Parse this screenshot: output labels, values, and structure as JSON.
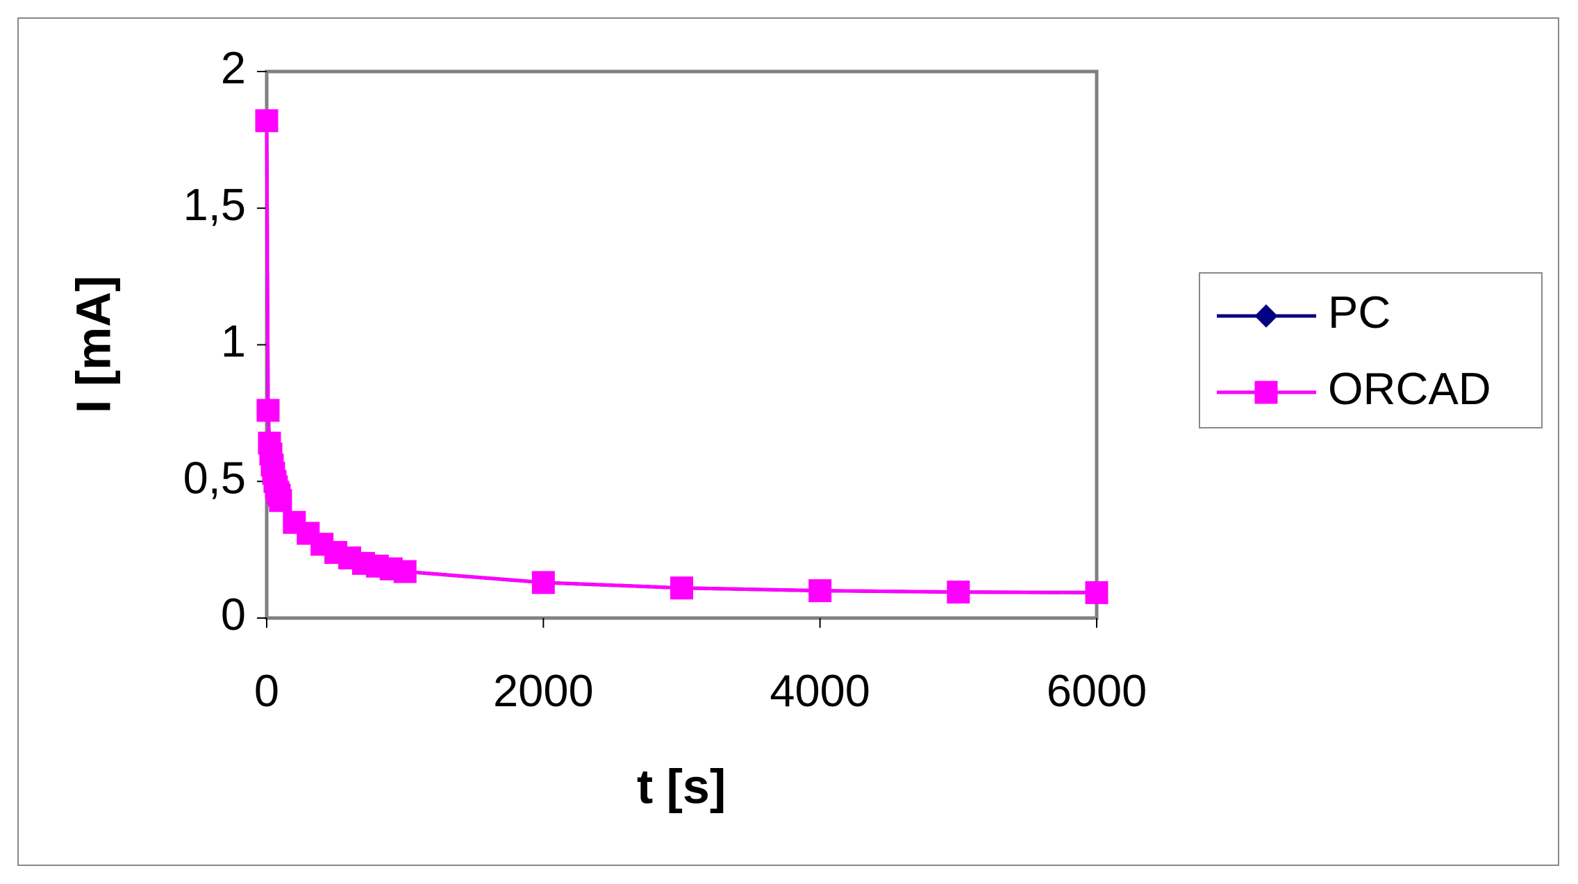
{
  "chart_data": {
    "type": "line",
    "x_label": "t [s]",
    "y_label": "I [mA]",
    "x": [
      0,
      10,
      20,
      30,
      40,
      50,
      60,
      70,
      80,
      90,
      100,
      200,
      300,
      400,
      500,
      600,
      700,
      800,
      900,
      1000,
      2000,
      3000,
      4000,
      5000,
      6000
    ],
    "series": [
      {
        "name": "PC",
        "color": "#000080",
        "marker": "diamond",
        "values": [
          1.82,
          0.76,
          0.64,
          0.6,
          0.56,
          0.53,
          0.5,
          0.48,
          0.46,
          0.45,
          0.43,
          0.35,
          0.31,
          0.27,
          0.24,
          0.22,
          0.2,
          0.19,
          0.18,
          0.17,
          0.13,
          0.11,
          0.1,
          0.095,
          0.093
        ]
      },
      {
        "name": "ORCAD",
        "color": "#ff00ff",
        "marker": "square",
        "values": [
          1.82,
          0.76,
          0.64,
          0.6,
          0.56,
          0.53,
          0.5,
          0.48,
          0.46,
          0.45,
          0.43,
          0.35,
          0.31,
          0.27,
          0.24,
          0.22,
          0.2,
          0.19,
          0.18,
          0.17,
          0.13,
          0.11,
          0.1,
          0.095,
          0.093
        ]
      }
    ],
    "xlim": [
      0,
      6000
    ],
    "xticks": [
      0,
      2000,
      4000,
      6000
    ],
    "ylim": [
      0,
      2
    ],
    "yticks": [
      0,
      {
        "value": 0.5,
        "label": "0,5"
      },
      1,
      {
        "value": 1.5,
        "label": "1,5"
      },
      2
    ],
    "grid": false,
    "legend": "right"
  }
}
